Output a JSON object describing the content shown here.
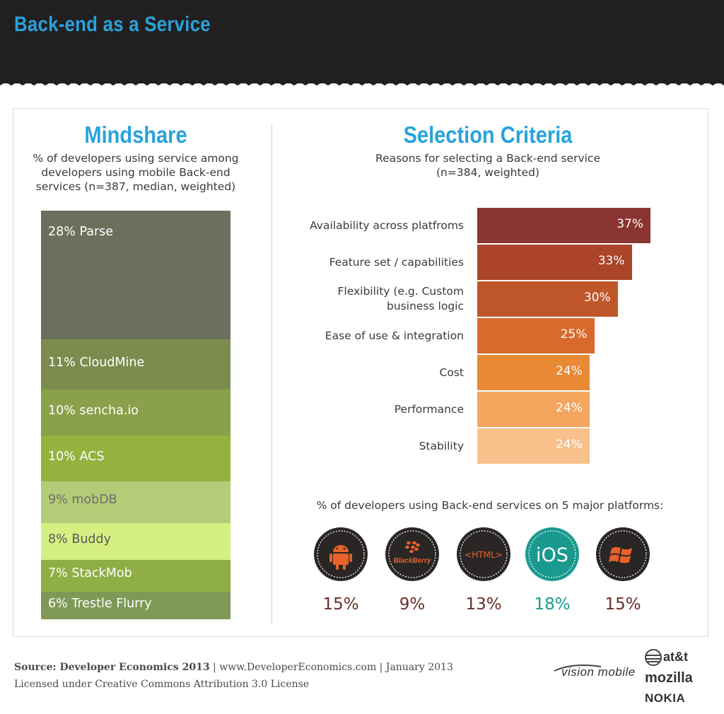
{
  "header": {
    "title": "Back-end as a Service"
  },
  "mindshare": {
    "title": "Mindshare",
    "subtitle_lines": [
      "% of developers using service among",
      "developers using mobile Back-end",
      "services (n=387, median, weighted)"
    ]
  },
  "criteria": {
    "title": "Selection Criteria",
    "subtitle_lines": [
      "Reasons for selecting a Back-end service",
      "(n=384, weighted)"
    ]
  },
  "platforms": {
    "caption": "% of developers using Back-end services on 5 major platforms:",
    "items": [
      {
        "name": "android",
        "value_label": "15%",
        "color": "#6b2c28"
      },
      {
        "name": "blackberry",
        "value_label": "9%",
        "color": "#6b2c28",
        "icon_text": "BlackBerry"
      },
      {
        "name": "html",
        "value_label": "13%",
        "color": "#6b2c28",
        "icon_text": "<HTML>"
      },
      {
        "name": "ios",
        "value_label": "18%",
        "color": "#1a9a8f",
        "icon_text": "iOS"
      },
      {
        "name": "windows",
        "value_label": "15%",
        "color": "#6b2c28"
      }
    ]
  },
  "chart_data": [
    {
      "type": "bar",
      "stacked": true,
      "title": "Mindshare",
      "categories": [
        "Parse",
        "CloudMine",
        "sencha.io",
        "ACS",
        "mobDB",
        "Buddy",
        "StackMob",
        "Trestle Flurry"
      ],
      "values": [
        28,
        11,
        10,
        10,
        9,
        8,
        7,
        6
      ],
      "labels": [
        "28% Parse",
        "11% CloudMine",
        "10% sencha.io",
        "10% ACS",
        "9% mobDB",
        "8% Buddy",
        "7% StackMob",
        "6% Trestle Flurry"
      ],
      "colors": [
        "#6b705c",
        "#7b8c4e",
        "#8aa04a",
        "#95b23f",
        "#b4cc78",
        "#d6ef82",
        "#8fae45",
        "#7e9955"
      ],
      "label_colors": [
        "#ffffff",
        "#ffffff",
        "#ffffff",
        "#ffffff",
        "#6e6e6e",
        "#5a5a5a",
        "#ffffff",
        "#ffffff"
      ]
    },
    {
      "type": "bar",
      "orientation": "horizontal",
      "title": "Selection Criteria",
      "categories": [
        "Availability across platfroms",
        "Feature set / capabilities",
        "Flexibility (e.g. Custom\nbusiness logic",
        "Ease of use & integration",
        "Cost",
        "Performance",
        "Stability"
      ],
      "values": [
        37,
        33,
        30,
        25,
        24,
        24,
        24
      ],
      "value_labels": [
        "37%",
        "33%",
        "30%",
        "25%",
        "24%",
        "24%",
        "24%"
      ],
      "colors": [
        "#8b3532",
        "#ab4429",
        "#c0572a",
        "#d86a2d",
        "#e88a34",
        "#f4a65f",
        "#f8c08b"
      ]
    },
    {
      "type": "bar",
      "title": "% of developers using Back-end services on 5 major platforms:",
      "categories": [
        "Android",
        "BlackBerry",
        "HTML",
        "iOS",
        "Windows"
      ],
      "values": [
        15,
        9,
        13,
        18,
        15
      ]
    }
  ],
  "footer": {
    "source_bold": "Source: Developer Economics 2013",
    "source_rest": " | www.DeveloperEconomics.com | January 2013",
    "license": "Licensed under Creative Commons Attribution 3.0 License",
    "logos": [
      "vision mobile",
      "at&t",
      "mozilla",
      "NOKIA"
    ]
  }
}
